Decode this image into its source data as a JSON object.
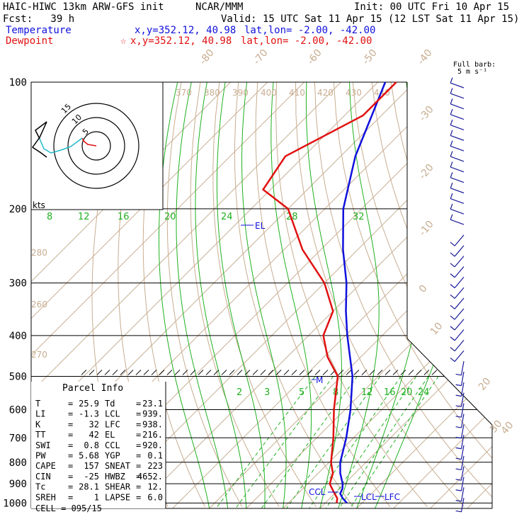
{
  "header": {
    "model": "HAIC-HIWC 13km ARW-GFS init",
    "org": "NCAR/MMM",
    "init": "Init: 00 UTC Fri 10 Apr 15",
    "fcst": "Fcst:   39 h",
    "valid": "Valid: 15 UTC Sat 11 Apr 15 (12 LST Sat 11 Apr 15)",
    "temp_label": "Temperature",
    "temp_xy": "x,y=352.12, 40.98",
    "temp_latlon": "lat,lon= -2.00, -42.00",
    "dew_label": "Dewpoint",
    "dew_xy": "x,y=352.12, 40.98",
    "dew_latlon": "lat,lon= -2.00, -42.00",
    "dew_star": "☆",
    "barb_title_1": "Full barb:",
    "barb_title_2": "5 m s⁻¹"
  },
  "colors": {
    "temperature": "#1010dd",
    "dewpoint": "#e01010",
    "isotherm": "#c8ad90",
    "theta": "#c8ad90",
    "moist": "#20b020",
    "barb": "#1a1a99",
    "hodo_red": "#e01010",
    "hodo_cyan": "#20b8c8"
  },
  "chart_data": {
    "type": "line",
    "title": "Skew-T log-P sounding",
    "pressure_levels": [
      "100",
      "200",
      "300",
      "400",
      "500",
      "600",
      "700",
      "800",
      "900",
      "1000"
    ],
    "isotherm_labels": [
      "-80",
      "-70",
      "-60",
      "-50",
      "-40",
      "-30",
      "-20",
      "-10",
      "0",
      "10",
      "20",
      "30",
      "40"
    ],
    "theta_labels": [
      "370",
      "380",
      "390",
      "400",
      "410",
      "420",
      "430",
      "440",
      "280",
      "260",
      "270"
    ],
    "mixing_ratio_labels_upper": [
      "8",
      "12",
      "16",
      "20",
      "24",
      "28",
      "32"
    ],
    "mixing_ratio_labels_lower": [
      "2",
      "3",
      "5",
      "8",
      "12",
      "16",
      "20",
      "24"
    ],
    "series": [
      {
        "name": "Temperature",
        "pressure": [
          1000,
          975,
          950,
          925,
          900,
          850,
          800,
          700,
          600,
          500,
          400,
          350,
          300,
          250,
          200,
          150,
          100
        ],
        "values": [
          25.9,
          23.5,
          21.5,
          20.8,
          19.5,
          16.0,
          13.0,
          8.0,
          1.5,
          -7.0,
          -19.5,
          -26.5,
          -34.0,
          -44.0,
          -55.0,
          -66.0,
          -78.0
        ]
      },
      {
        "name": "Dewpoint",
        "pressure": [
          1000,
          975,
          950,
          925,
          900,
          850,
          800,
          700,
          600,
          500,
          450,
          400,
          350,
          300,
          250,
          200,
          180,
          150,
          120,
          100
        ],
        "values": [
          23.1,
          22.0,
          20.0,
          18.0,
          16.0,
          14.0,
          10.5,
          4.5,
          -3.0,
          -11.0,
          -19.0,
          -26.0,
          -30.0,
          -40.0,
          -55.0,
          -70.0,
          -82.0,
          -85.0,
          -75.0,
          -75.0
        ]
      }
    ],
    "annotations": [
      "EL",
      "M",
      "CCL",
      "LCL",
      "LFC"
    ],
    "hodograph": {
      "units": "kts",
      "rings": [
        "5",
        "10",
        "15"
      ]
    },
    "winds": {
      "count": 40
    }
  },
  "parcel": {
    "title": "Parcel Info",
    "rows": [
      {
        "l1": "T",
        "v1": "25.9",
        "l2": "Td",
        "v2": "23.1"
      },
      {
        "l1": "LI",
        "v1": "-1.3",
        "l2": "LCL",
        "v2": "939."
      },
      {
        "l1": "K",
        "v1": "32",
        "l2": "LFC",
        "v2": "938."
      },
      {
        "l1": "TT",
        "v1": "42",
        "l2": "EL",
        "v2": "216."
      },
      {
        "l1": "SWI",
        "v1": "0.8",
        "l2": "CCL",
        "v2": "920."
      },
      {
        "l1": "PW",
        "v1": "5.68",
        "l2": "YGP",
        "v2": "0.1"
      },
      {
        "l1": "CAPE",
        "v1": "157",
        "l2": "SNEAT",
        "v2": "223"
      },
      {
        "l1": "CIN",
        "v1": "-25",
        "l2": "HWBZ",
        "v2": "4652."
      },
      {
        "l1": "Tc",
        "v1": "28.1",
        "l2": "SHEAR",
        "v2": "12."
      },
      {
        "l1": "SREH",
        "v1": "1",
        "l2": "LAPSE",
        "v2": "6.0"
      }
    ],
    "cell": "CELL = 095/15"
  }
}
